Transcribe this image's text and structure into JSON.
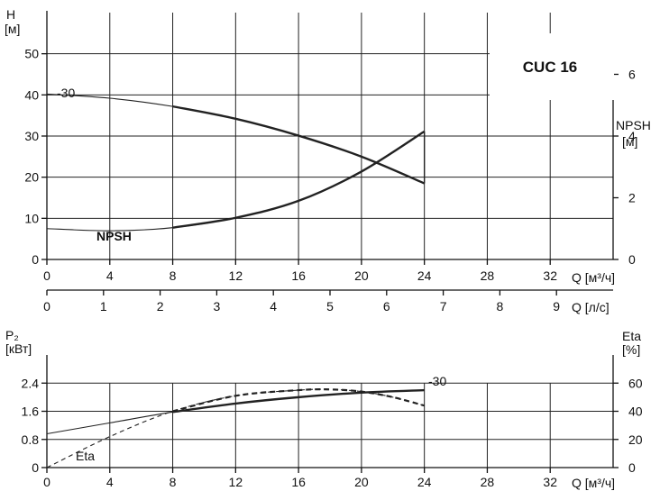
{
  "model_label": "CUC 16",
  "chart_data": [
    {
      "type": "line",
      "name": "head",
      "xlabel": "Q [м³/ч]",
      "xlabel_secondary": "Q [л/с]",
      "ylabel": "H [м]",
      "ylabel_h": "H",
      "ylabel_h_unit": "[м]",
      "ylabel_right": "NPSH [м]",
      "ylabel_right_name": "NPSH",
      "ylabel_right_unit": "[м]",
      "xlim": [
        0,
        36
      ],
      "ylim": [
        0,
        60
      ],
      "ylim_right": [
        0,
        8
      ],
      "x_ticks": [
        0,
        4,
        8,
        12,
        16,
        20,
        24,
        28,
        32
      ],
      "x_tick_labels": [
        "0",
        "4",
        "8",
        "12",
        "16",
        "20",
        "24",
        "28",
        "32"
      ],
      "x2_ticks": [
        0,
        1,
        2,
        3,
        4,
        5,
        6,
        7,
        8,
        9
      ],
      "x2_tick_labels": [
        "0",
        "1",
        "2",
        "3",
        "4",
        "5",
        "6",
        "7",
        "8",
        "9"
      ],
      "y_ticks": [
        0,
        10,
        20,
        30,
        40,
        50
      ],
      "y_tick_labels": [
        "0",
        "10",
        "20",
        "30",
        "40",
        "50"
      ],
      "y_right_ticks": [
        0,
        2,
        4,
        6
      ],
      "y_right_tick_labels": [
        "0",
        "2",
        "4",
        "6"
      ],
      "grid": true,
      "series": [
        {
          "name": "-30",
          "axis": "left",
          "x": [
            0,
            4,
            8,
            12,
            16,
            20,
            24
          ],
          "y": [
            40.2,
            39.2,
            37.2,
            34.2,
            30.1,
            25.0,
            18.5
          ]
        },
        {
          "name": "NPSH",
          "axis": "right",
          "x": [
            0,
            4,
            8,
            12,
            16,
            20,
            24
          ],
          "y": [
            1.0,
            0.93,
            1.03,
            1.35,
            1.9,
            2.85,
            4.15
          ]
        }
      ]
    },
    {
      "type": "line",
      "name": "power_eta",
      "xlabel": "Q [м³/ч]",
      "ylabel": "P₂ [кВт]",
      "ylabel_p": "P₂",
      "ylabel_p_unit": "[кВт]",
      "ylabel_right": "Eta [%]",
      "ylabel_right_name": "Eta",
      "ylabel_right_unit": "[%]",
      "xlim": [
        0,
        36
      ],
      "ylim": [
        0,
        3.2
      ],
      "ylim_right": [
        0,
        80
      ],
      "x_ticks": [
        0,
        4,
        8,
        12,
        16,
        20,
        24,
        28,
        32
      ],
      "x_tick_labels": [
        "0",
        "4",
        "8",
        "12",
        "16",
        "20",
        "24",
        "28",
        "32"
      ],
      "y_ticks": [
        0,
        0.8,
        1.6,
        2.4
      ],
      "y_tick_labels": [
        "0",
        "0.8",
        "1.6",
        "2.4"
      ],
      "y_right_ticks": [
        0,
        20,
        40,
        60
      ],
      "y_right_tick_labels": [
        "0",
        "20",
        "40",
        "60"
      ],
      "grid": true,
      "series": [
        {
          "name": "-30",
          "axis": "left",
          "x": [
            0,
            4,
            8,
            12,
            16,
            20,
            24
          ],
          "y": [
            0.96,
            1.27,
            1.58,
            1.82,
            2.0,
            2.13,
            2.2
          ]
        },
        {
          "name": "Eta",
          "axis": "right",
          "style": "dashed",
          "x": [
            0,
            4,
            8,
            12,
            16,
            18,
            20,
            22,
            24
          ],
          "y": [
            0,
            22,
            40,
            51,
            55,
            55.5,
            54,
            50,
            44
          ]
        }
      ]
    }
  ]
}
